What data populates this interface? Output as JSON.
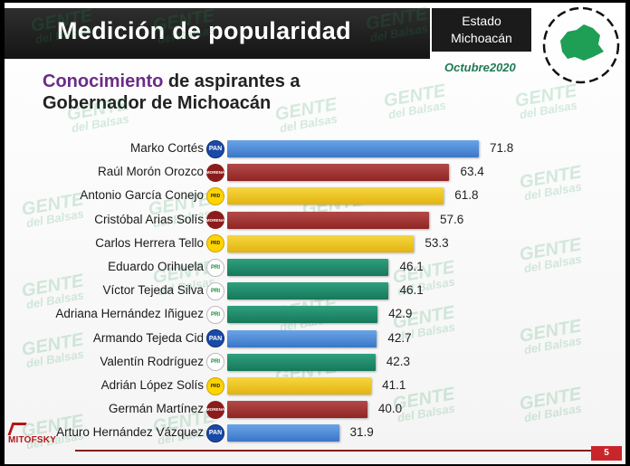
{
  "header": {
    "title": "Medición de popularidad",
    "state_line1": "Estado",
    "state_line2": "Michoacán",
    "date": "Octubre2020"
  },
  "subtitle": {
    "highlight": "Conocimiento",
    "rest_line1": "de aspirantes a",
    "line2": "Gobernador de Michoacán"
  },
  "watermark": {
    "main": "GENTE",
    "sub": "del Balsas"
  },
  "footer": {
    "brand": "MITOFSKY",
    "page": "5"
  },
  "colors": {
    "pan": "#3a76c8",
    "morena": "#8f2624",
    "prd": "#e2b410",
    "pri": "#15785a",
    "accent": "#6a2d86"
  },
  "party_labels": {
    "pan": "PAN",
    "morena": "MORENA",
    "prd": "PRD",
    "pri": "PRI"
  },
  "chart_data": {
    "type": "bar",
    "orientation": "horizontal",
    "xlim": [
      0,
      100
    ],
    "categories": [
      "Marko Cortés",
      "Raúl Morón Orozco",
      "Antonio García Conejo",
      "Cristóbal Arias Solís",
      "Carlos Herrera Tello",
      "Eduardo Orihuela",
      "Víctor Tejeda Silva",
      "Adriana Hernández Iñiguez",
      "Armando Tejeda Cid",
      "Valentín Rodríguez",
      "Adrián López Solís",
      "Germán Martínez",
      "Arturo Hernández Vázquez"
    ],
    "values": [
      71.8,
      63.4,
      61.8,
      57.6,
      53.3,
      46.1,
      46.1,
      42.9,
      42.7,
      42.3,
      41.1,
      40.0,
      31.9
    ],
    "labels": [
      "71.8",
      "63.4",
      "61.8",
      "57.6",
      "53.3",
      "46.1",
      "46.1",
      "42.9",
      "42.7",
      "42.3",
      "41.1",
      "40.0",
      "31.9"
    ],
    "parties": [
      "pan",
      "morena",
      "prd",
      "morena",
      "prd",
      "pri",
      "pri",
      "pri",
      "pan",
      "pri",
      "prd",
      "morena",
      "pan"
    ]
  }
}
